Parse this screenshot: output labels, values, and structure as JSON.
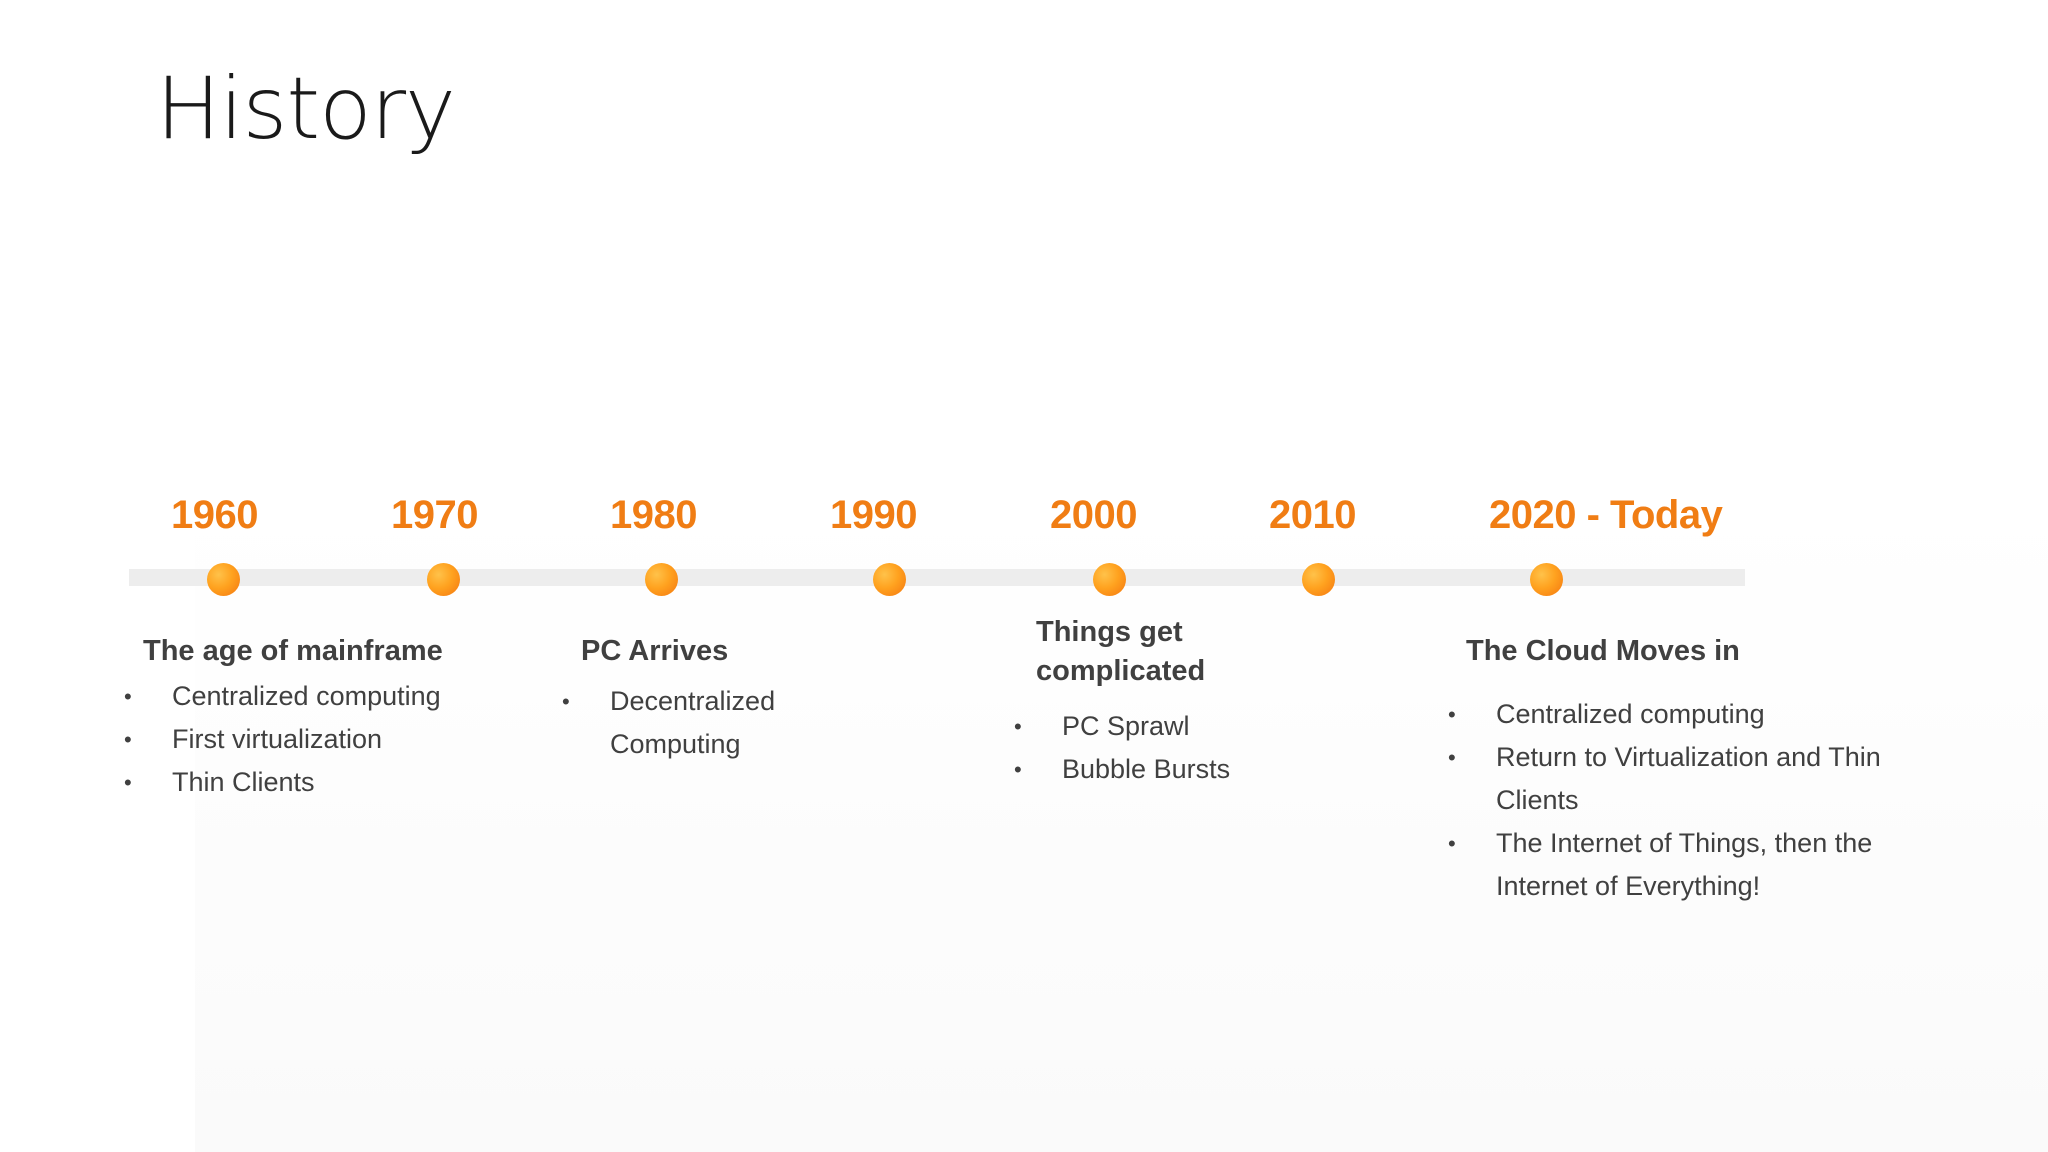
{
  "slide": {
    "title": "History"
  },
  "timeline": {
    "years": [
      "1960",
      "1970",
      "1980",
      "1990",
      "2000",
      "2010",
      "2020 - Today"
    ],
    "accent_color": "#f07d14",
    "track_color": "#ededed"
  },
  "eras": [
    {
      "heading": "The age of mainframe",
      "items": [
        "Centralized computing",
        "First virtualization",
        "Thin Clients"
      ]
    },
    {
      "heading": "PC Arrives",
      "items": [
        "Decentralized Computing"
      ]
    },
    {
      "heading": "Things get complicated",
      "items": [
        "PC Sprawl",
        "Bubble Bursts"
      ]
    },
    {
      "heading": "The Cloud Moves in",
      "items": [
        "Centralized computing",
        "Return to Virtualization and Thin Clients",
        "The Internet of Things, then the Internet of Everything!"
      ]
    }
  ],
  "bullet_char": "•"
}
